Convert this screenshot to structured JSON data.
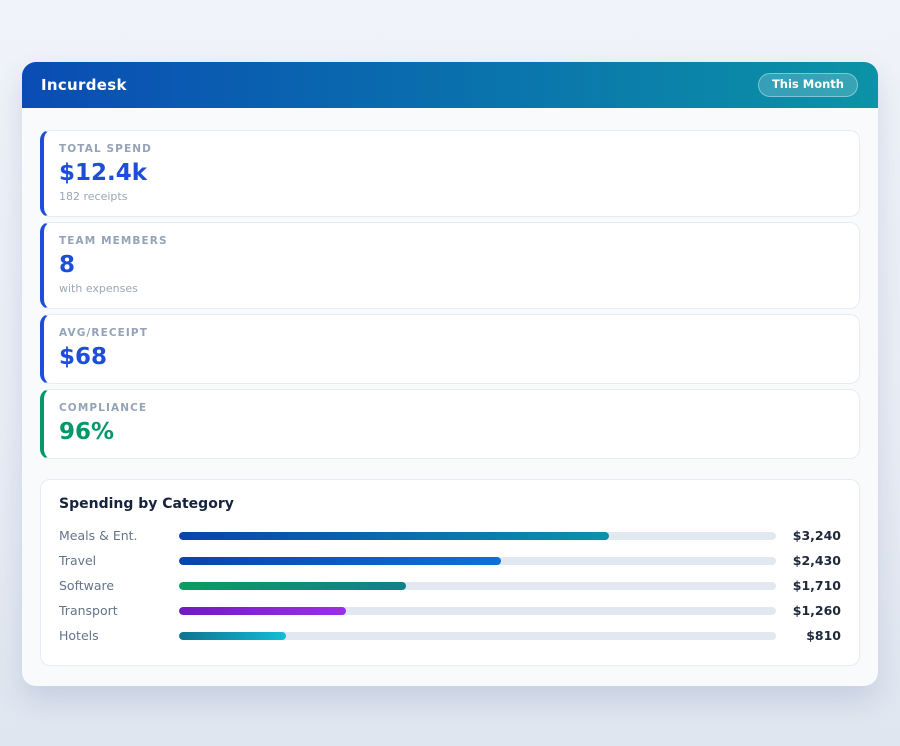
{
  "header": {
    "title": "Incurdesk",
    "period_badge": "This Month",
    "gradient_from": "#0a4cb4",
    "gradient_to": "#0b93a6"
  },
  "stats": [
    {
      "label": "TOTAL SPEND",
      "value": "$12.4k",
      "sub": "182 receipts",
      "accent": "#1d4ed8",
      "value_color": "#1d4ed8"
    },
    {
      "label": "TEAM MEMBERS",
      "value": "8",
      "sub": "with expenses",
      "accent": "#1d4ed8",
      "value_color": "#1d4ed8"
    },
    {
      "label": "AVG/RECEIPT",
      "value": "$68",
      "accent": "#1d4ed8",
      "value_color": "#1d4ed8"
    },
    {
      "label": "COMPLIANCE",
      "value": "96%",
      "accent": "#059669",
      "value_color": "#059669"
    }
  ],
  "chart_data": {
    "type": "bar",
    "orientation": "horizontal",
    "title": "Spending by Category",
    "categories": [
      "Meals & Ent.",
      "Travel",
      "Software",
      "Transport",
      "Hotels"
    ],
    "values": [
      3240,
      2430,
      1710,
      1260,
      810
    ],
    "value_labels": [
      "$3,240",
      "$2,430",
      "$1,710",
      "$1,260",
      "$810"
    ],
    "scale_max": 4500,
    "track_color": "#e2e8f0",
    "bar_colors": [
      [
        "#0a43ad",
        "#0a93ab"
      ],
      [
        "#0a43ad",
        "#0b72d8"
      ],
      [
        "#079e60",
        "#12808c"
      ],
      [
        "#7019c8",
        "#9c2fe9"
      ],
      [
        "#0e7490",
        "#12bcd6"
      ]
    ]
  }
}
